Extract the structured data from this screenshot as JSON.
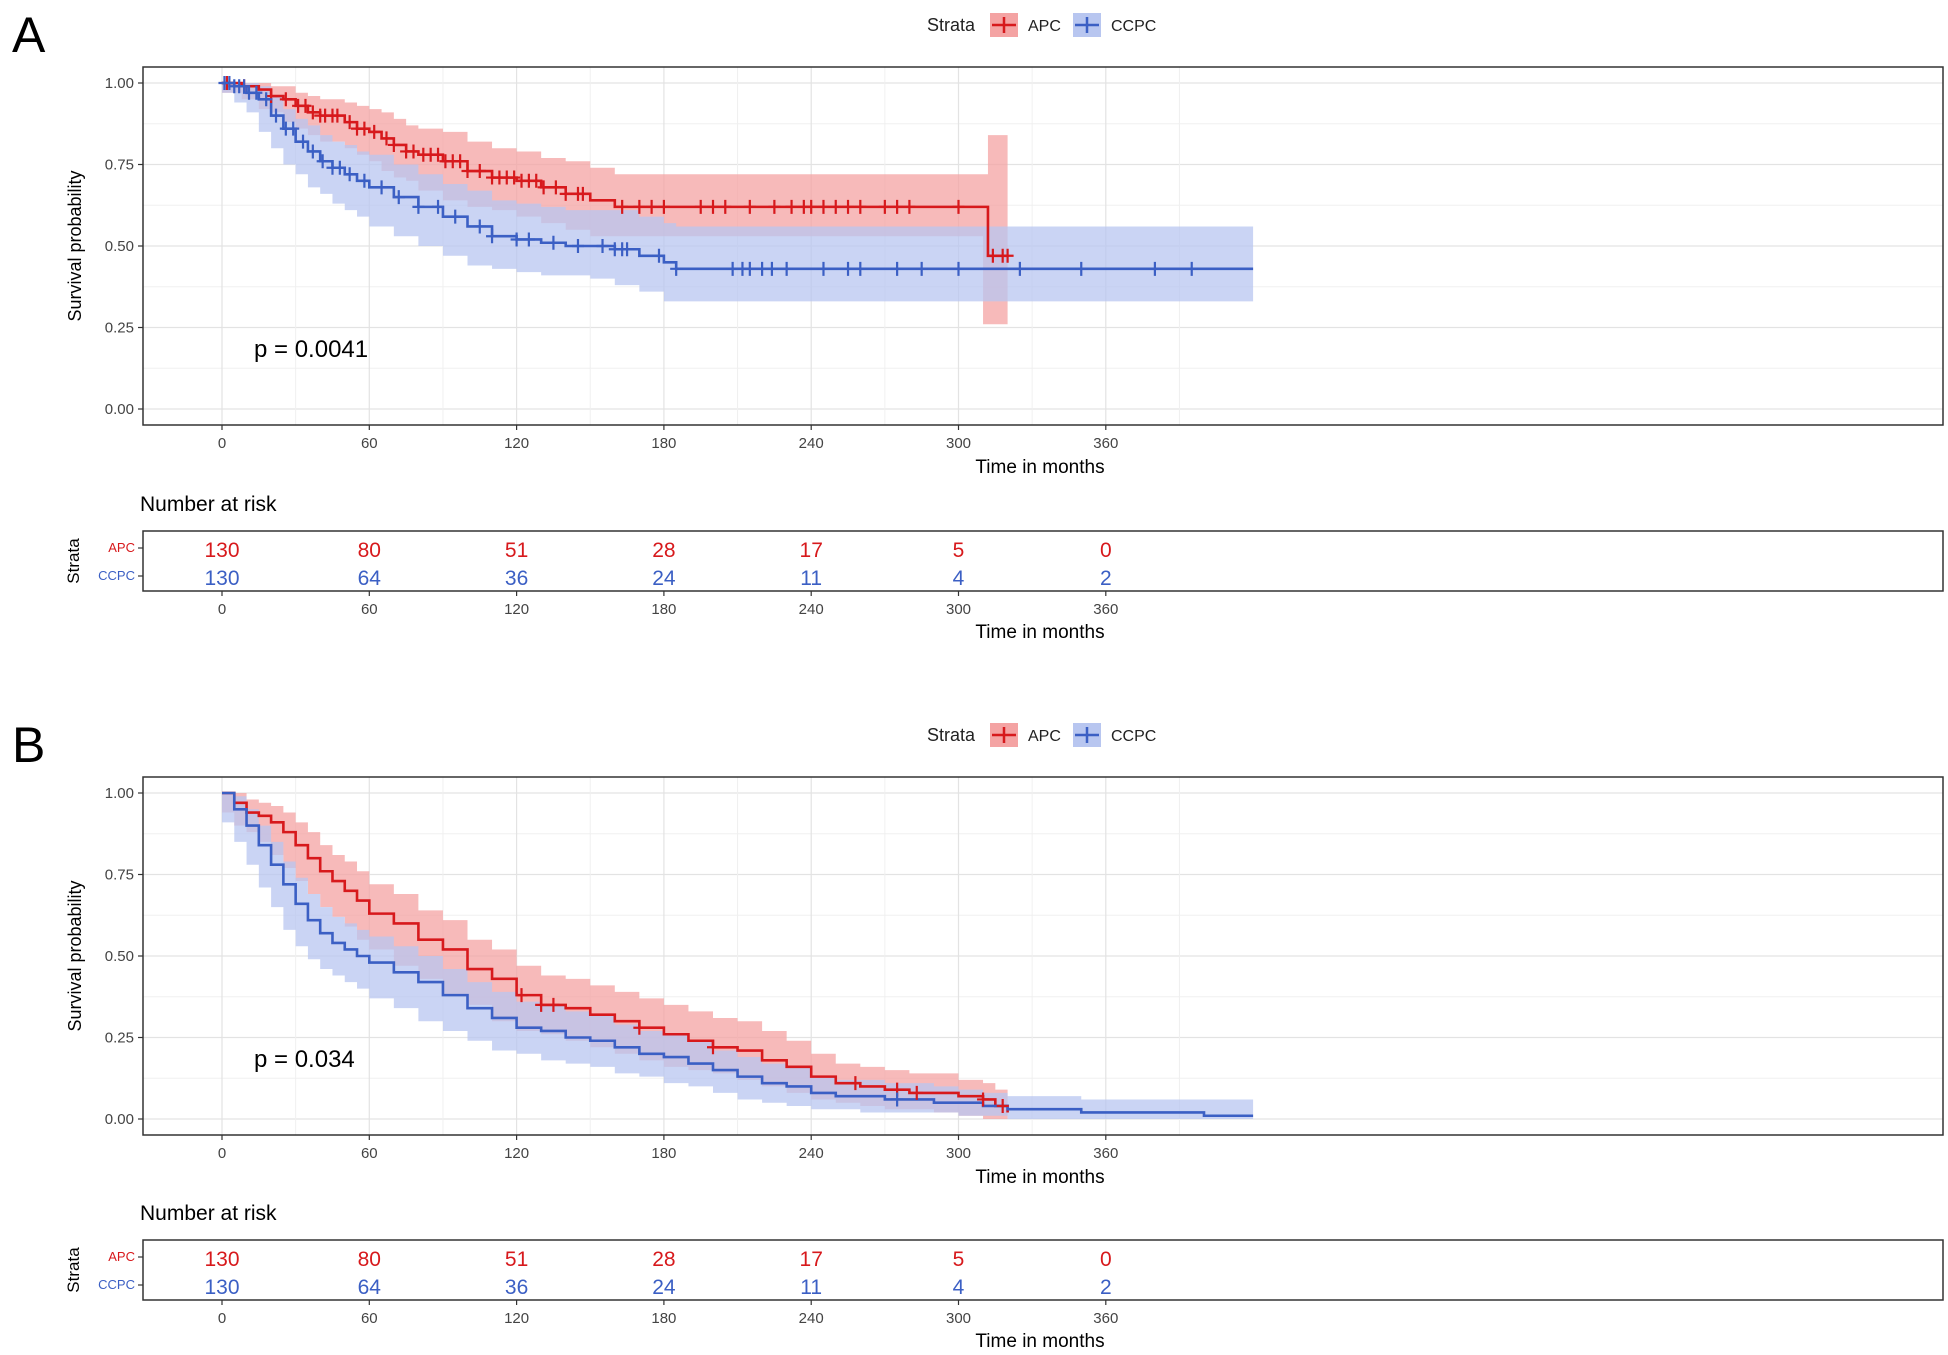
{
  "panels": [
    {
      "label": "A",
      "legend_title": "Strata",
      "pvalue": "p = 0.0041",
      "risk_title": "Number at risk",
      "risk_ylabel": "Strata"
    },
    {
      "label": "B",
      "legend_title": "Strata",
      "pvalue": "p = 0.034",
      "risk_title": "Number at risk",
      "risk_ylabel": "Strata"
    }
  ],
  "chart_data": [
    {
      "type": "line",
      "subtype": "kaplan-meier",
      "xlabel": "Time in months",
      "ylabel": "Survival probability",
      "xlim": [
        0,
        420
      ],
      "ylim": [
        0,
        1
      ],
      "xticks": [
        0,
        60,
        120,
        180,
        240,
        300,
        360
      ],
      "yticks": [
        "0.00",
        "0.25",
        "0.50",
        "0.75",
        "1.00"
      ],
      "grid": true,
      "legend_position": "top",
      "series": [
        {
          "name": "APC",
          "color": "#d7191c",
          "fill": "#f4a3a3",
          "x": [
            0,
            8,
            15,
            20,
            25,
            30,
            35,
            40,
            50,
            55,
            60,
            65,
            70,
            75,
            80,
            90,
            100,
            110,
            120,
            130,
            140,
            150,
            160,
            200,
            260,
            310,
            312,
            320
          ],
          "y": [
            1.0,
            0.99,
            0.98,
            0.96,
            0.95,
            0.93,
            0.91,
            0.9,
            0.88,
            0.86,
            0.85,
            0.83,
            0.81,
            0.79,
            0.78,
            0.76,
            0.73,
            0.71,
            0.7,
            0.68,
            0.66,
            0.64,
            0.62,
            0.62,
            0.62,
            0.62,
            0.47,
            0.47
          ],
          "lower": [
            1.0,
            0.97,
            0.95,
            0.92,
            0.91,
            0.88,
            0.86,
            0.84,
            0.82,
            0.8,
            0.78,
            0.76,
            0.73,
            0.71,
            0.7,
            0.67,
            0.64,
            0.62,
            0.61,
            0.59,
            0.57,
            0.55,
            0.53,
            0.53,
            0.53,
            0.53,
            0.26,
            0.26
          ],
          "upper": [
            1.0,
            1.0,
            1.0,
            0.99,
            0.99,
            0.97,
            0.96,
            0.95,
            0.94,
            0.93,
            0.92,
            0.91,
            0.89,
            0.87,
            0.86,
            0.85,
            0.82,
            0.8,
            0.79,
            0.77,
            0.76,
            0.74,
            0.72,
            0.72,
            0.72,
            0.72,
            0.84,
            0.84
          ],
          "censor": [
            2,
            9,
            20,
            26,
            31,
            34,
            37,
            40,
            42,
            45,
            47,
            52,
            55,
            58,
            62,
            67,
            70,
            75,
            78,
            82,
            85,
            88,
            91,
            94,
            97,
            100,
            105,
            110,
            113,
            116,
            119,
            122,
            125,
            128,
            131,
            136,
            140,
            145,
            147,
            163,
            170,
            175,
            180,
            195,
            200,
            205,
            215,
            225,
            232,
            237,
            240,
            245,
            250,
            255,
            260,
            270,
            275,
            280,
            300,
            314,
            318,
            320
          ]
        },
        {
          "name": "CCPC",
          "color": "#3b5fc4",
          "fill": "#b8c6f0",
          "x": [
            0,
            5,
            10,
            15,
            20,
            25,
            30,
            35,
            40,
            45,
            50,
            55,
            60,
            70,
            80,
            90,
            100,
            110,
            120,
            130,
            140,
            150,
            160,
            170,
            180,
            185,
            300,
            420
          ],
          "y": [
            1.0,
            0.99,
            0.97,
            0.95,
            0.9,
            0.86,
            0.82,
            0.79,
            0.76,
            0.74,
            0.72,
            0.7,
            0.68,
            0.65,
            0.62,
            0.59,
            0.56,
            0.53,
            0.52,
            0.51,
            0.5,
            0.5,
            0.49,
            0.47,
            0.45,
            0.43,
            0.43,
            0.43
          ],
          "lower": [
            1.0,
            0.97,
            0.94,
            0.91,
            0.85,
            0.8,
            0.75,
            0.72,
            0.68,
            0.66,
            0.63,
            0.61,
            0.59,
            0.56,
            0.53,
            0.5,
            0.47,
            0.44,
            0.43,
            0.42,
            0.41,
            0.41,
            0.4,
            0.38,
            0.36,
            0.33,
            0.33,
            0.33
          ],
          "upper": [
            1.0,
            1.0,
            1.0,
            0.99,
            0.96,
            0.92,
            0.89,
            0.87,
            0.84,
            0.82,
            0.81,
            0.79,
            0.78,
            0.75,
            0.72,
            0.69,
            0.67,
            0.64,
            0.63,
            0.62,
            0.61,
            0.61,
            0.61,
            0.59,
            0.57,
            0.56,
            0.56,
            0.56
          ],
          "censor": [
            1,
            3,
            5,
            7,
            9,
            11,
            14,
            18,
            22,
            26,
            29,
            33,
            37,
            41,
            45,
            48,
            52,
            58,
            65,
            72,
            80,
            88,
            95,
            105,
            110,
            120,
            125,
            135,
            145,
            155,
            160,
            163,
            165,
            178,
            185,
            208,
            212,
            215,
            220,
            224,
            230,
            245,
            255,
            260,
            275,
            285,
            300,
            325,
            350,
            380,
            395
          ]
        }
      ],
      "risk_table": {
        "times": [
          0,
          60,
          120,
          180,
          240,
          300,
          360
        ],
        "rows": [
          {
            "name": "APC",
            "values": [
              "130",
              "80",
              "51",
              "28",
              "17",
              "5",
              "0"
            ]
          },
          {
            "name": "CCPC",
            "values": [
              "130",
              "64",
              "36",
              "24",
              "11",
              "4",
              "2"
            ]
          }
        ]
      }
    },
    {
      "type": "line",
      "subtype": "kaplan-meier",
      "xlabel": "Time in months",
      "ylabel": "Survival probability",
      "xlim": [
        0,
        420
      ],
      "ylim": [
        0,
        1
      ],
      "xticks": [
        0,
        60,
        120,
        180,
        240,
        300,
        360
      ],
      "yticks": [
        "0.00",
        "0.25",
        "0.50",
        "0.75",
        "1.00"
      ],
      "grid": true,
      "legend_position": "top",
      "series": [
        {
          "name": "APC",
          "color": "#d7191c",
          "fill": "#f4a3a3",
          "x": [
            0,
            5,
            10,
            15,
            20,
            25,
            30,
            35,
            40,
            45,
            50,
            55,
            60,
            70,
            80,
            90,
            100,
            110,
            120,
            130,
            140,
            150,
            160,
            170,
            180,
            190,
            200,
            210,
            220,
            230,
            240,
            250,
            260,
            270,
            280,
            290,
            300,
            310,
            315,
            320
          ],
          "y": [
            1.0,
            0.97,
            0.94,
            0.93,
            0.91,
            0.88,
            0.84,
            0.8,
            0.76,
            0.73,
            0.7,
            0.67,
            0.63,
            0.6,
            0.55,
            0.52,
            0.46,
            0.43,
            0.38,
            0.35,
            0.34,
            0.32,
            0.3,
            0.28,
            0.26,
            0.24,
            0.22,
            0.21,
            0.18,
            0.16,
            0.13,
            0.11,
            0.1,
            0.09,
            0.08,
            0.08,
            0.07,
            0.06,
            0.04,
            0.02
          ],
          "lower": [
            1.0,
            0.94,
            0.9,
            0.88,
            0.85,
            0.81,
            0.77,
            0.73,
            0.69,
            0.65,
            0.62,
            0.59,
            0.55,
            0.52,
            0.47,
            0.43,
            0.38,
            0.35,
            0.3,
            0.27,
            0.26,
            0.24,
            0.22,
            0.2,
            0.18,
            0.16,
            0.15,
            0.14,
            0.12,
            0.1,
            0.08,
            0.06,
            0.05,
            0.04,
            0.03,
            0.03,
            0.02,
            0.01,
            0.0,
            0.0
          ],
          "upper": [
            1.0,
            1.0,
            0.98,
            0.97,
            0.96,
            0.94,
            0.91,
            0.88,
            0.84,
            0.81,
            0.79,
            0.76,
            0.72,
            0.69,
            0.64,
            0.61,
            0.55,
            0.52,
            0.47,
            0.44,
            0.43,
            0.41,
            0.39,
            0.37,
            0.35,
            0.33,
            0.31,
            0.3,
            0.27,
            0.24,
            0.2,
            0.17,
            0.16,
            0.15,
            0.14,
            0.14,
            0.12,
            0.11,
            0.09,
            0.06
          ]
        },
        {
          "name": "CCPC",
          "color": "#3b5fc4",
          "fill": "#b8c6f0",
          "x": [
            0,
            5,
            10,
            15,
            20,
            25,
            30,
            35,
            40,
            45,
            50,
            55,
            60,
            70,
            80,
            90,
            100,
            110,
            120,
            130,
            140,
            150,
            160,
            170,
            180,
            190,
            200,
            210,
            220,
            230,
            240,
            250,
            260,
            270,
            280,
            290,
            300,
            310,
            320,
            330,
            350,
            380,
            400,
            420
          ],
          "y": [
            1.0,
            0.95,
            0.9,
            0.84,
            0.78,
            0.72,
            0.66,
            0.61,
            0.57,
            0.54,
            0.52,
            0.5,
            0.48,
            0.45,
            0.42,
            0.38,
            0.34,
            0.31,
            0.28,
            0.27,
            0.25,
            0.24,
            0.22,
            0.2,
            0.19,
            0.17,
            0.15,
            0.13,
            0.11,
            0.1,
            0.08,
            0.07,
            0.07,
            0.06,
            0.06,
            0.05,
            0.05,
            0.04,
            0.03,
            0.03,
            0.02,
            0.02,
            0.01,
            0.01
          ],
          "lower": [
            1.0,
            0.91,
            0.85,
            0.78,
            0.71,
            0.65,
            0.58,
            0.53,
            0.49,
            0.46,
            0.44,
            0.42,
            0.4,
            0.37,
            0.34,
            0.3,
            0.27,
            0.24,
            0.21,
            0.2,
            0.18,
            0.17,
            0.16,
            0.14,
            0.13,
            0.11,
            0.1,
            0.08,
            0.06,
            0.05,
            0.04,
            0.03,
            0.03,
            0.02,
            0.02,
            0.02,
            0.02,
            0.01,
            0.01,
            0.0,
            0.0,
            0.0,
            0.0,
            0.0
          ],
          "upper": [
            1.0,
            0.99,
            0.95,
            0.9,
            0.85,
            0.79,
            0.74,
            0.69,
            0.65,
            0.62,
            0.6,
            0.58,
            0.56,
            0.53,
            0.5,
            0.46,
            0.42,
            0.39,
            0.36,
            0.35,
            0.33,
            0.32,
            0.29,
            0.27,
            0.26,
            0.24,
            0.21,
            0.19,
            0.17,
            0.16,
            0.13,
            0.12,
            0.12,
            0.11,
            0.11,
            0.1,
            0.09,
            0.08,
            0.07,
            0.07,
            0.06,
            0.06,
            0.06,
            0.05
          ]
        }
      ],
      "censor_points": [
        {
          "series": "APC",
          "x": [
            122,
            130,
            135,
            170,
            200,
            258,
            275,
            283,
            310,
            318
          ]
        },
        {
          "series": "CCPC",
          "x": [
            275
          ]
        }
      ],
      "risk_table": {
        "times": [
          0,
          60,
          120,
          180,
          240,
          300,
          360
        ],
        "rows": [
          {
            "name": "APC",
            "values": [
              "130",
              "80",
              "51",
              "28",
              "17",
              "5",
              "0"
            ]
          },
          {
            "name": "CCPC",
            "values": [
              "130",
              "64",
              "36",
              "24",
              "11",
              "4",
              "2"
            ]
          }
        ]
      }
    }
  ]
}
